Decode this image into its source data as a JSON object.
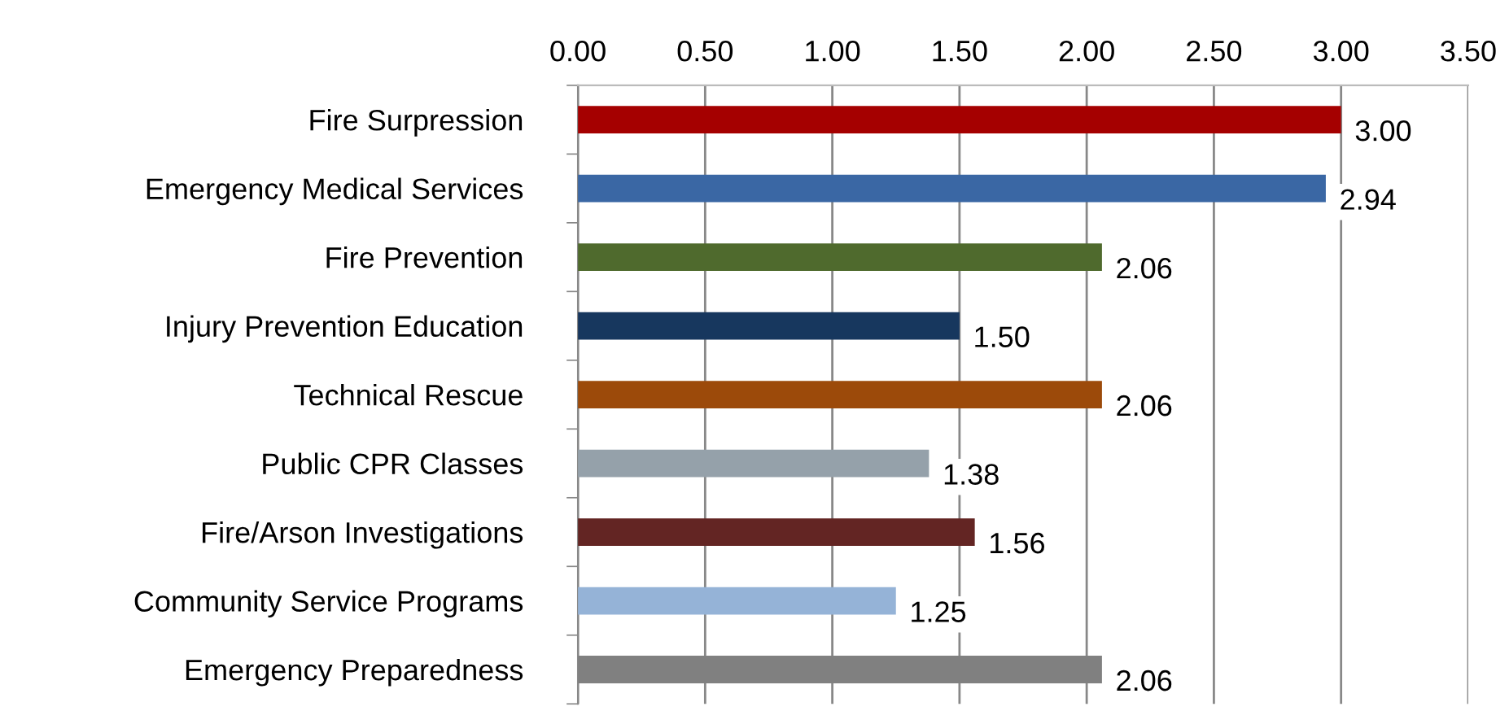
{
  "chart_data": {
    "type": "bar",
    "orientation": "horizontal",
    "categories": [
      "Fire Surpression",
      "Emergency Medical Services",
      "Fire Prevention",
      "Injury Prevention Education",
      "Technical Rescue",
      "Public CPR Classes",
      "Fire/Arson Investigations",
      "Community Service Programs",
      "Emergency Preparedness"
    ],
    "values": [
      3.0,
      2.94,
      2.06,
      1.5,
      2.06,
      1.38,
      1.56,
      1.25,
      2.06
    ],
    "colors": [
      "#a50000",
      "#3a67a4",
      "#4f6a2d",
      "#17375e",
      "#9c4a0a",
      "#95a1aa",
      "#632523",
      "#95b3d7",
      "#808080"
    ],
    "value_labels": [
      "3.00",
      "2.94",
      "2.06",
      "1.50",
      "2.06",
      "1.38",
      "1.56",
      "1.25",
      "2.06"
    ],
    "xlim": [
      0,
      3.5
    ],
    "xticks": [
      {
        "value": 0,
        "label": "0.00"
      },
      {
        "value": 0.5,
        "label": "0.50"
      },
      {
        "value": 1,
        "label": "1.00"
      },
      {
        "value": 1.5,
        "label": "1.50"
      },
      {
        "value": 2,
        "label": "2.00"
      },
      {
        "value": 2.5,
        "label": "2.50"
      },
      {
        "value": 3,
        "label": "3.00"
      },
      {
        "value": 3.5,
        "label": "3.50"
      }
    ],
    "grid": "x"
  }
}
